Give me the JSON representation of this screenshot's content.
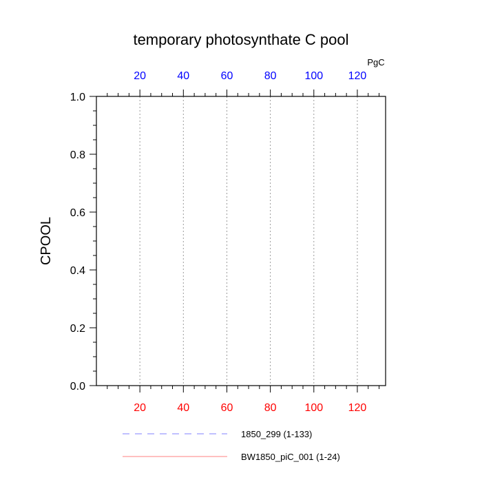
{
  "chart_data": {
    "type": "line",
    "title": "temporary photosynthate C pool",
    "ylabel": "CPOOL",
    "top_axis_units": "PgC",
    "xlim": [
      0,
      133
    ],
    "ylim": [
      0,
      1
    ],
    "x_ticks": [
      20,
      40,
      60,
      80,
      100,
      120
    ],
    "x_tick_labels": [
      "20",
      "40",
      "60",
      "80",
      "100",
      "120"
    ],
    "x_minor_step": 5,
    "y_ticks": [
      0,
      0.2,
      0.4,
      0.6,
      0.8,
      1
    ],
    "y_tick_labels": [
      "0.0",
      "0.2",
      "0.4",
      "0.6",
      "0.8",
      "1.0"
    ],
    "y_minor_step": 0.05,
    "top_tick_color": "#0000ff",
    "bottom_tick_color": "#ff0000",
    "grid": "vertical dotted at major x ticks",
    "series": [
      {
        "name": "1850_299 (1-133)",
        "style": "dashed",
        "color": "#8080ff",
        "x_range": [
          1,
          133
        ],
        "y_constant": 0
      },
      {
        "name": "BW1850_piC_001 (1-24)",
        "style": "solid",
        "color": "#ff8080",
        "x_range": [
          1,
          24
        ],
        "y_constant": 0
      }
    ]
  }
}
